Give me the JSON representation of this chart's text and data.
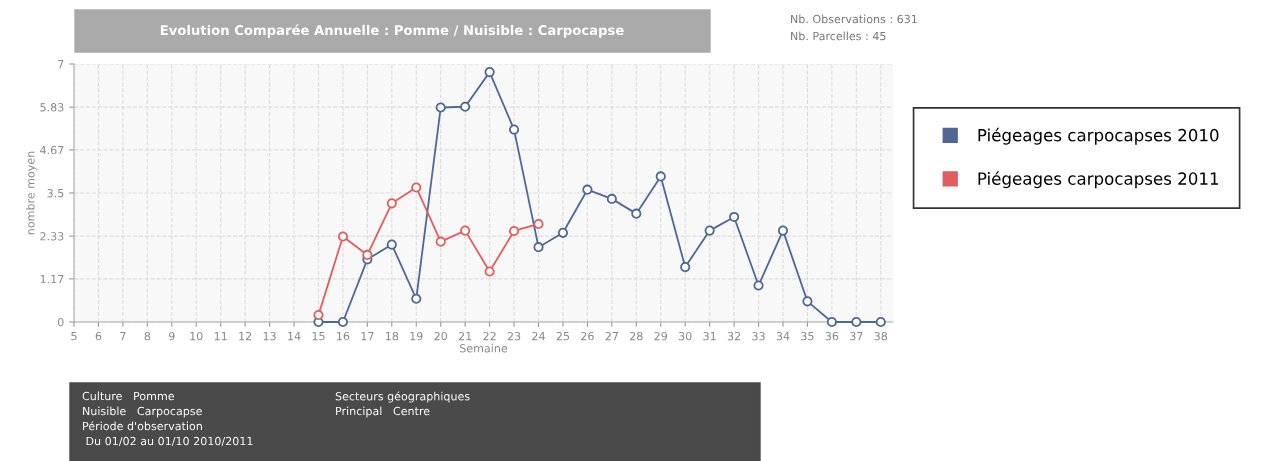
{
  "chart_data": {
    "type": "line",
    "title": "Evolution Comparée Annuelle : Pomme / Nuisible : Carpocapse",
    "xlabel": "Semaine",
    "ylabel": "nombre moyen",
    "x": [
      15,
      16,
      17,
      18,
      19,
      20,
      21,
      22,
      23,
      24,
      25,
      26,
      27,
      28,
      29,
      30,
      31,
      32,
      33,
      34,
      35,
      36,
      37,
      38
    ],
    "series": [
      {
        "name": "Piégeages carpocapses 2010",
        "color": "#4f6796",
        "values": [
          0,
          0,
          1.7,
          2.1,
          0.63,
          5.82,
          5.84,
          6.78,
          5.22,
          2.03,
          2.42,
          3.59,
          3.34,
          2.94,
          3.95,
          1.49,
          2.48,
          2.85,
          0.99,
          2.48,
          0.56,
          0,
          0,
          0
        ]
      },
      {
        "name": "Piégeages carpocapses 2011",
        "color": "#e25d5d",
        "x": [
          15,
          16,
          17,
          18,
          19,
          20,
          21,
          22,
          23,
          24
        ],
        "values": [
          0.19,
          2.32,
          1.82,
          3.22,
          3.65,
          2.18,
          2.48,
          1.37,
          2.47,
          2.66
        ]
      }
    ],
    "xlim": [
      5,
      38.5
    ],
    "xticks": [
      5,
      6,
      7,
      8,
      9,
      10,
      11,
      12,
      13,
      14,
      15,
      16,
      17,
      18,
      19,
      20,
      21,
      22,
      23,
      24,
      25,
      26,
      27,
      28,
      29,
      30,
      31,
      32,
      33,
      34,
      35,
      36,
      37,
      38
    ],
    "ylim": [
      0,
      7
    ],
    "yticks": [
      0,
      1.17,
      2.33,
      3.5,
      4.67,
      5.83,
      7
    ],
    "grid": true,
    "legend": "right",
    "marker": "circle",
    "line_style": "solid",
    "annotations": [
      "Nb. Observations : 631",
      "Nb. Parcelles : 45",
      "Culture   Pomme",
      "Nuisible   Carpocapse",
      "Période d'observation",
      " Du 01/02 au 01/10 2010/2011",
      "Secteurs géographiques",
      "Principal   Centre"
    ]
  }
}
